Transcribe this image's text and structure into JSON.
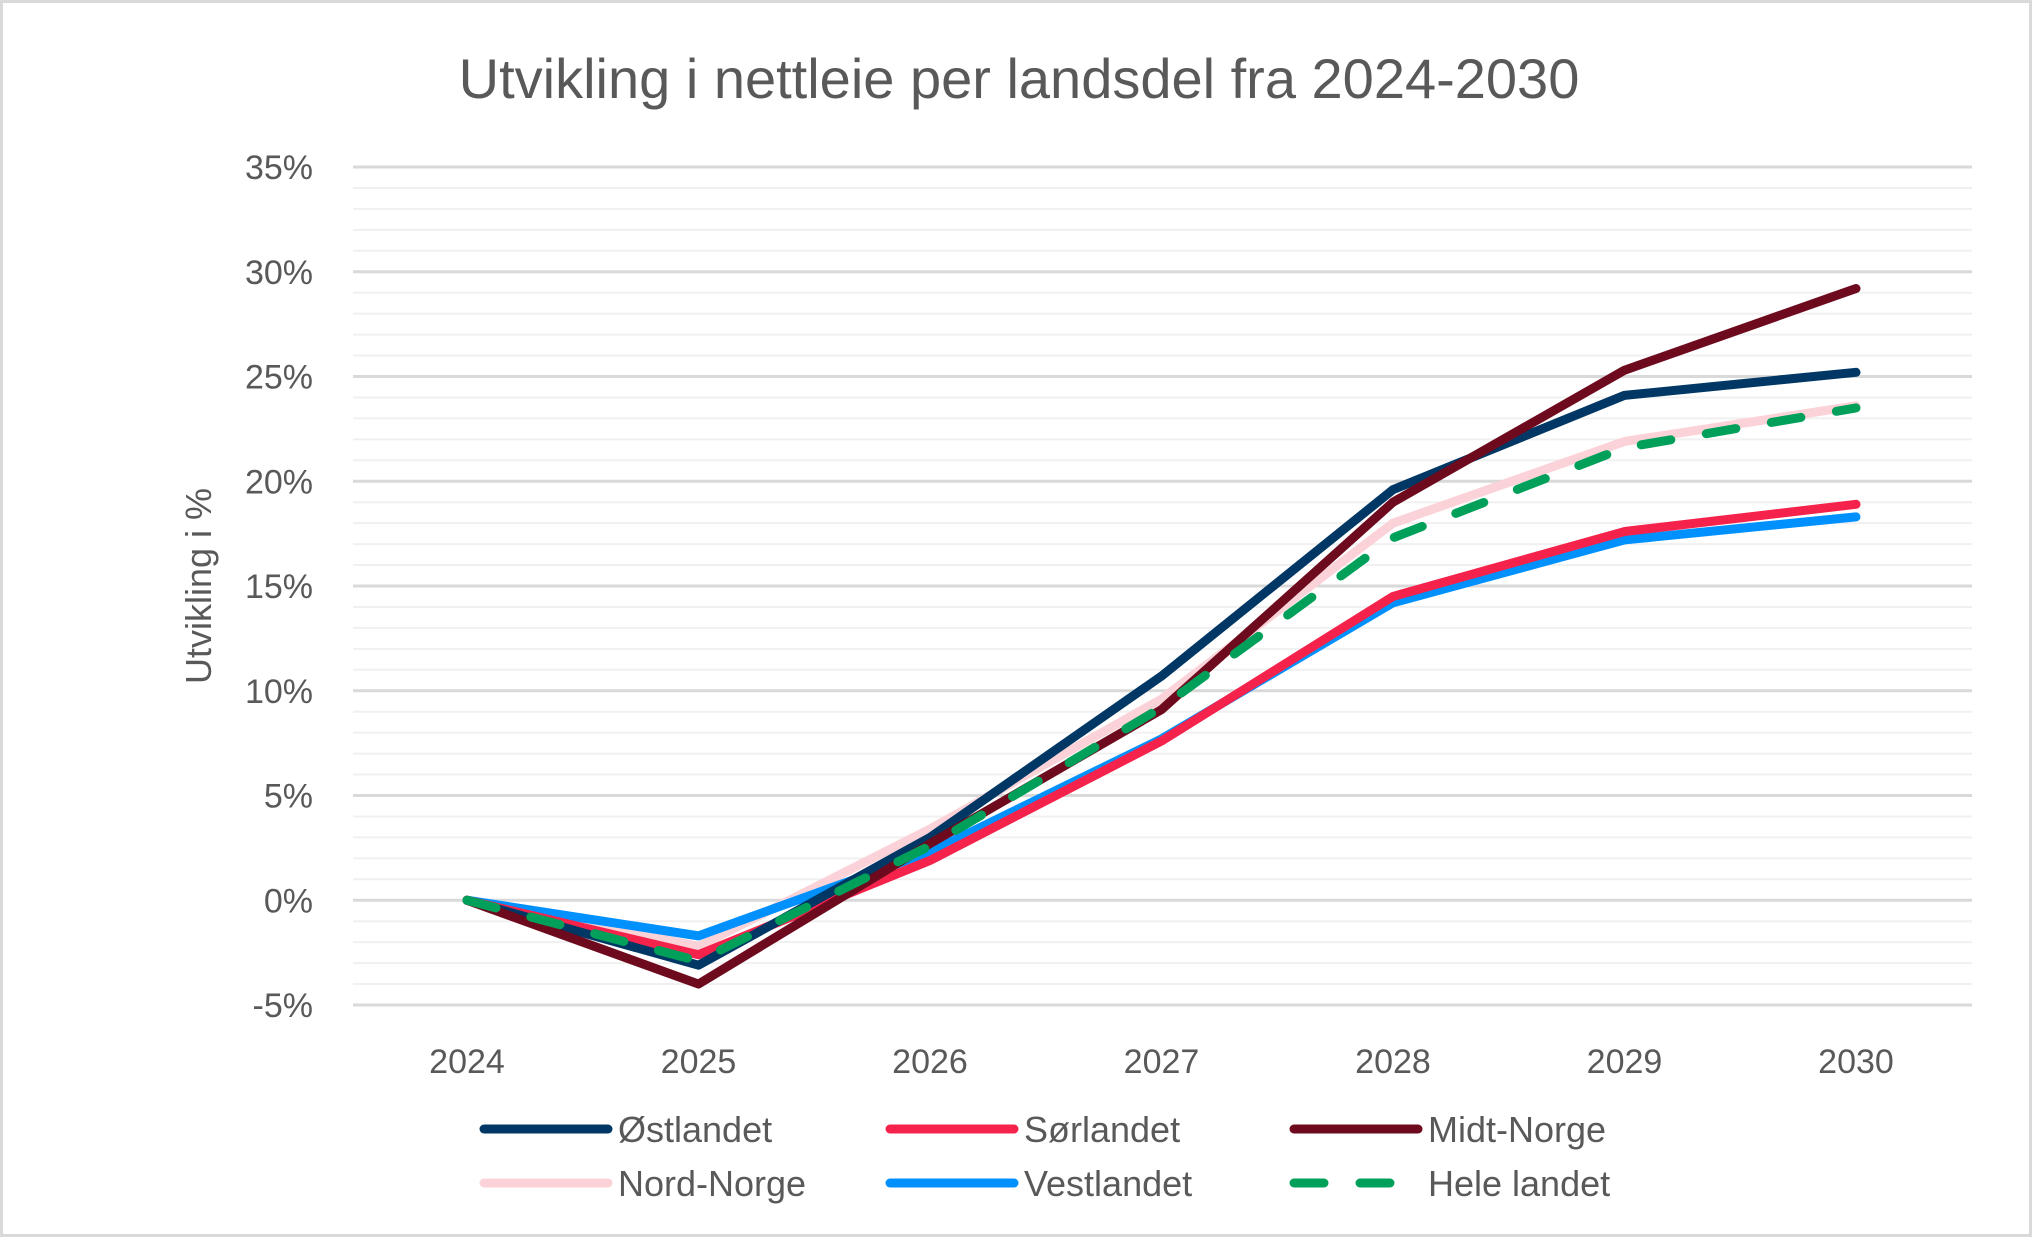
{
  "chart_data": {
    "type": "line",
    "title": "Utvikling i nettleie per landsdel fra 2024-2030",
    "xlabel": "",
    "ylabel": "Utvikling i %",
    "x": [
      "2024",
      "2025",
      "2026",
      "2027",
      "2028",
      "2029",
      "2030"
    ],
    "ylim": [
      -5,
      35
    ],
    "y_major_step": 5,
    "y_minor_step": 1,
    "y_ticks": [
      "-5%",
      "0%",
      "5%",
      "10%",
      "15%",
      "20%",
      "25%",
      "30%",
      "35%"
    ],
    "grid": true,
    "legend_position": "bottom",
    "series": [
      {
        "name": "Østlandet",
        "color": "#003764",
        "dash": false,
        "values": [
          0,
          -3.1,
          3.0,
          10.7,
          19.6,
          24.1,
          25.2
        ]
      },
      {
        "name": "Sørlandet",
        "color": "#f5234b",
        "dash": false,
        "values": [
          0,
          -2.6,
          1.9,
          7.6,
          14.5,
          17.6,
          18.9
        ]
      },
      {
        "name": "Midt-Norge",
        "color": "#6e0a1e",
        "dash": false,
        "values": [
          0,
          -4.0,
          2.7,
          9.1,
          19.0,
          25.3,
          29.2
        ]
      },
      {
        "name": "Nord-Norge",
        "color": "#fbd2d7",
        "dash": false,
        "values": [
          0,
          -2.2,
          3.4,
          9.6,
          18.0,
          21.9,
          23.6
        ]
      },
      {
        "name": "Vestlandet",
        "color": "#0091ff",
        "dash": false,
        "values": [
          0,
          -1.7,
          2.3,
          7.7,
          14.2,
          17.2,
          18.3
        ]
      },
      {
        "name": "Hele landet",
        "color": "#00a05a",
        "dash": true,
        "values": [
          0,
          -2.9,
          2.6,
          9.2,
          17.3,
          21.6,
          23.5
        ]
      }
    ]
  }
}
